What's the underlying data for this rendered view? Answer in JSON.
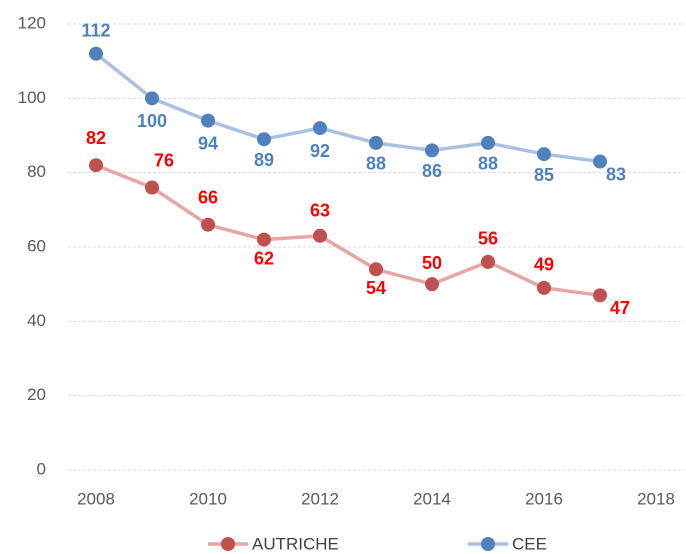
{
  "chart_data": {
    "type": "line",
    "x": [
      2008,
      2009,
      2010,
      2011,
      2012,
      2013,
      2014,
      2015,
      2016,
      2017
    ],
    "series": [
      {
        "name": "AUTRICHE",
        "color": "#c0504d",
        "line_color": "#e6a6a6",
        "label_color": "#ff0000",
        "values": [
          82,
          76,
          66,
          62,
          63,
          54,
          50,
          56,
          49,
          47
        ]
      },
      {
        "name": "CEE",
        "color": "#4f81bd",
        "line_color": "#a9c1e0",
        "label_color": "#4f81bd",
        "values": [
          112,
          100,
          94,
          89,
          92,
          88,
          86,
          88,
          85,
          83
        ]
      }
    ],
    "xlim": [
      2007.5,
      2018.5
    ],
    "xticks": [
      2008,
      2010,
      2012,
      2014,
      2016,
      2018
    ],
    "ylim": [
      0,
      120
    ],
    "yticks": [
      0,
      20,
      40,
      60,
      80,
      100,
      120
    ],
    "grid": true,
    "legend": "bottom"
  }
}
